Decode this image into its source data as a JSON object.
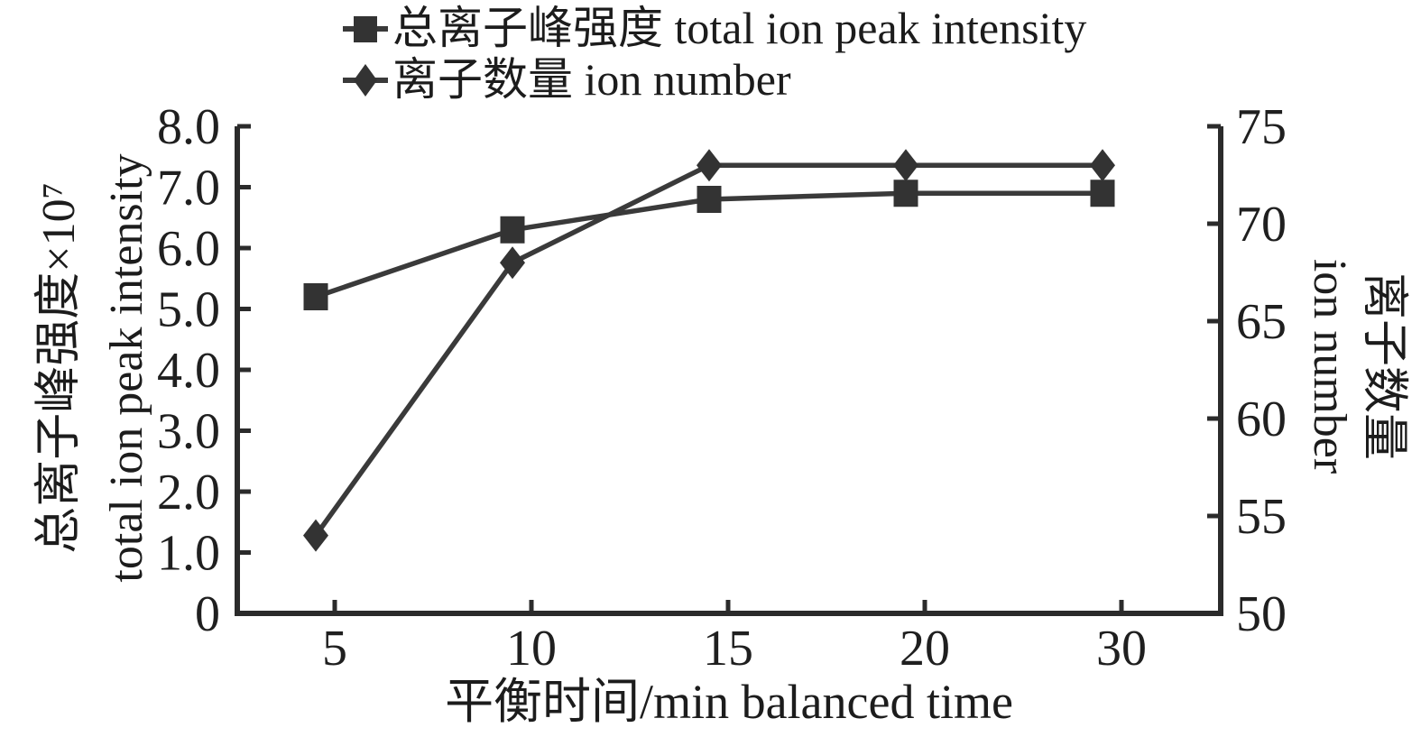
{
  "chart_data": {
    "type": "line",
    "x_categories": [
      5,
      10,
      15,
      20,
      30
    ],
    "x_tick_labels": [
      "5",
      "10",
      "15",
      "20",
      "30"
    ],
    "xlabel": "平衡时间/min balanced time",
    "left_axis": {
      "title_zh": "总离子峰强度×10⁷",
      "title_en": "total ion peak intensity",
      "ticks": [
        "8.0",
        "7.0",
        "6.0",
        "5.0",
        "4.0",
        "3.0",
        "2.0",
        "1.0",
        "0"
      ],
      "range": [
        0,
        8
      ]
    },
    "right_axis": {
      "title_zh": "离子数量",
      "title_en": "ion number",
      "ticks": [
        "75",
        "70",
        "65",
        "60",
        "55",
        "50"
      ],
      "range": [
        50,
        75
      ]
    },
    "series": [
      {
        "name": "总离子峰强度 total ion peak intensity",
        "axis": "left",
        "marker": "square",
        "color": "#333333",
        "line_color": "#3a3a3a",
        "values": [
          5.2,
          6.3,
          6.8,
          6.9,
          6.9
        ]
      },
      {
        "name": "离子数量 ion number",
        "axis": "right",
        "marker": "diamond",
        "color": "#333333",
        "line_color": "#3a3a3a",
        "values": [
          54,
          68,
          73,
          73,
          73
        ]
      }
    ],
    "legend_position": "top",
    "grid": false,
    "colors": {
      "spine": "#2b2b2b",
      "text": "#1c1c1c",
      "background": "#ffffff"
    }
  }
}
